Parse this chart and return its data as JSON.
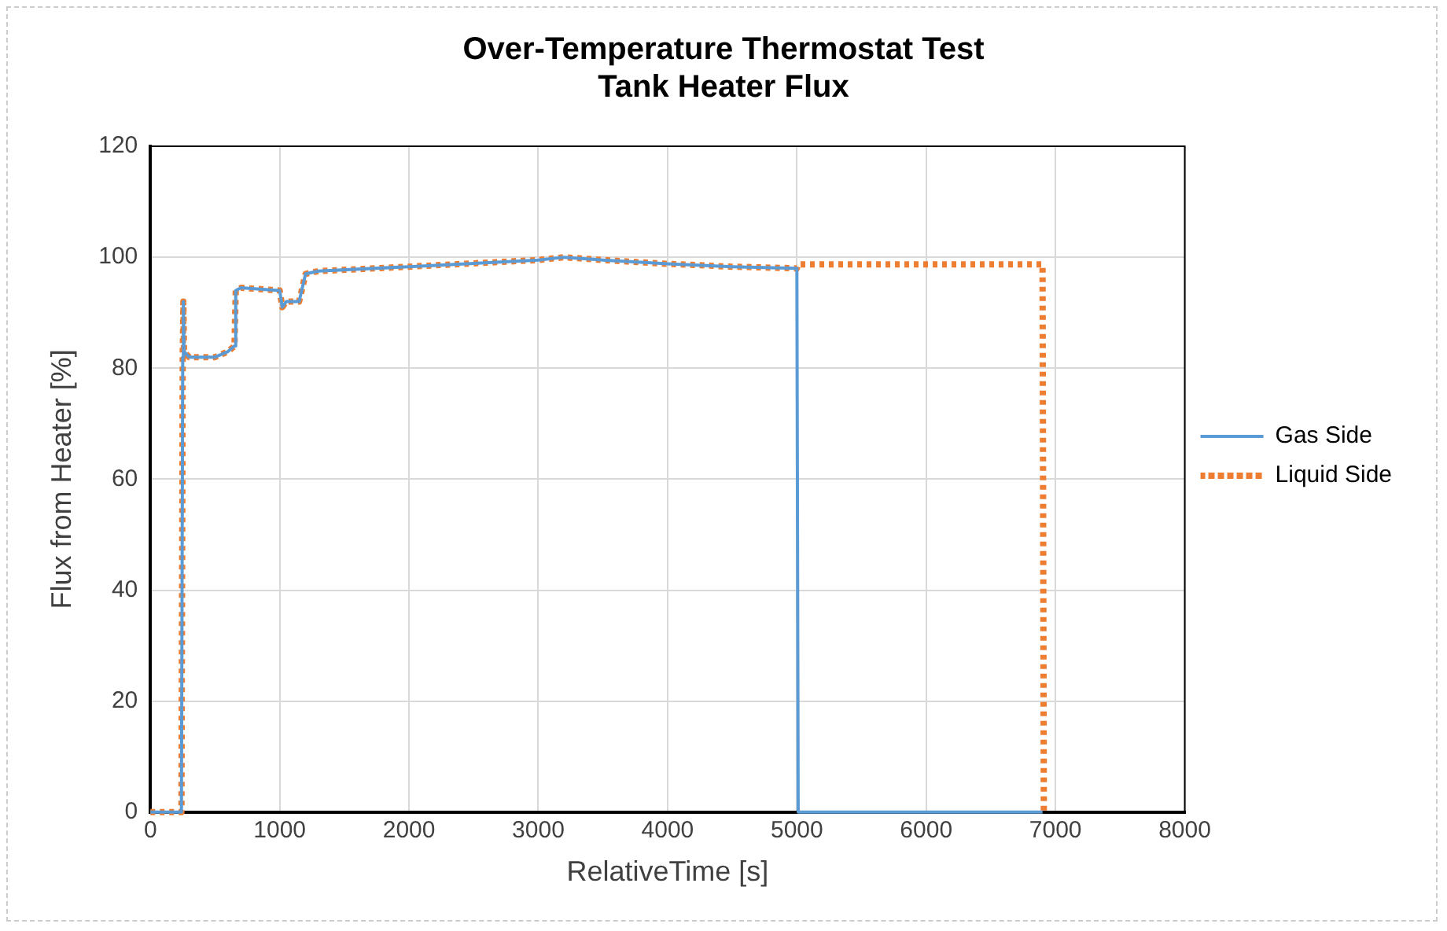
{
  "chart_data": {
    "type": "line",
    "title": "Over-Temperature Thermostat Test\nTank Heater Flux",
    "xlabel": "RelativeTime [s]",
    "ylabel": "Flux from Heater [%]",
    "xlim": [
      0,
      8000
    ],
    "xticks": [
      0,
      1000,
      2000,
      3000,
      4000,
      5000,
      6000,
      7000,
      8000
    ],
    "ylim": [
      0,
      120
    ],
    "yticks": [
      0,
      20,
      40,
      60,
      80,
      100,
      120
    ],
    "grid": true,
    "legend": "right",
    "marker": "none",
    "series": [
      {
        "name": "Gas Side",
        "color": "#5b9bd5",
        "line_style": "solid",
        "x": [
          0,
          240,
          250,
          255,
          260,
          300,
          500,
          600,
          650,
          660,
          700,
          1000,
          1020,
          1050,
          1150,
          1180,
          1200,
          1300,
          2000,
          3000,
          3200,
          3500,
          4000,
          4500,
          5000,
          5010,
          6900
        ],
        "values": [
          0,
          0,
          82,
          92,
          83,
          82,
          82,
          83,
          84,
          94,
          94.5,
          94,
          91,
          92,
          92,
          95,
          97,
          97.5,
          98.3,
          99.5,
          100,
          99.5,
          98.8,
          98.3,
          98,
          0,
          0
        ]
      },
      {
        "name": "Liquid Side",
        "color": "#ed7d31",
        "line_style": "dotted",
        "x": [
          0,
          240,
          250,
          255,
          260,
          300,
          500,
          600,
          650,
          660,
          700,
          1000,
          1020,
          1050,
          1150,
          1180,
          1200,
          1300,
          2000,
          3000,
          3200,
          3500,
          4000,
          4500,
          5000,
          5010,
          6900,
          6910
        ],
        "values": [
          0,
          0,
          82,
          92,
          83,
          82,
          82,
          83,
          84,
          94,
          94.5,
          94,
          91,
          92,
          92,
          95,
          97,
          97.5,
          98.3,
          99.5,
          100,
          99.5,
          98.8,
          98.3,
          98,
          98.7,
          98.7,
          0
        ]
      }
    ]
  }
}
